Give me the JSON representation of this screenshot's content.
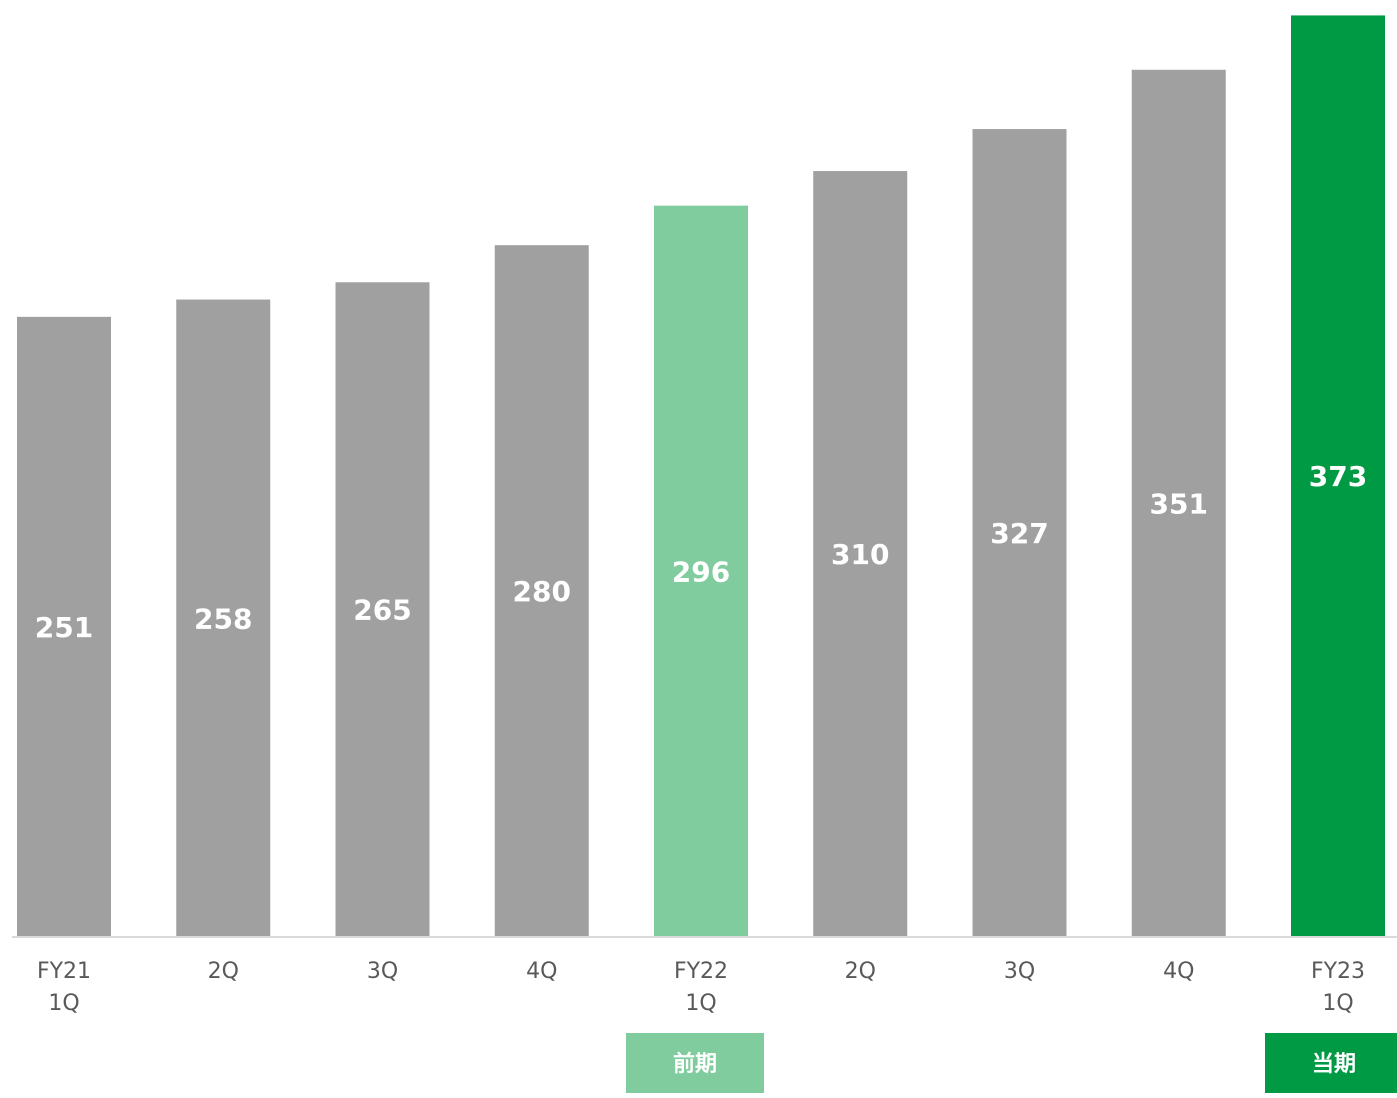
{
  "chart_data": {
    "type": "bar",
    "categories": [
      [
        "FY21",
        "1Q"
      ],
      [
        "2Q"
      ],
      [
        "3Q"
      ],
      [
        "4Q"
      ],
      [
        "FY22",
        "1Q"
      ],
      [
        "2Q"
      ],
      [
        "3Q"
      ],
      [
        "4Q"
      ],
      [
        "FY23",
        "1Q"
      ]
    ],
    "values": [
      251,
      258,
      265,
      280,
      296,
      310,
      327,
      351,
      373
    ],
    "bar_colors": [
      "#a0a0a0",
      "#a0a0a0",
      "#a0a0a0",
      "#a0a0a0",
      "#80cc9e",
      "#a0a0a0",
      "#a0a0a0",
      "#a0a0a0",
      "#009a44"
    ],
    "title": "",
    "xlabel": "",
    "ylabel": "",
    "ylim": [
      0,
      376
    ],
    "grid": false,
    "legend": "none",
    "period_badges": [
      {
        "category_index": 4,
        "label": "前期",
        "color": "#80cc9e"
      },
      {
        "category_index": 8,
        "label": "当期",
        "color": "#009a44"
      }
    ]
  },
  "colors": {
    "axis": "#d9d9d9",
    "tick_text": "#595959",
    "value_text": "#ffffff"
  }
}
